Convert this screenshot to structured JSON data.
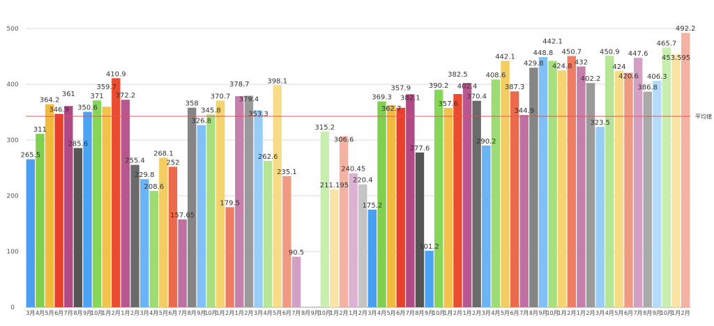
{
  "chart_data": {
    "type": "bar",
    "title": "",
    "xlabel": "",
    "ylabel": "",
    "ylim": [
      0,
      500
    ],
    "yticks": [
      0,
      100,
      200,
      300,
      400,
      500
    ],
    "grid": true,
    "legend": "none",
    "reference_line": {
      "label": "平均値",
      "value": 342.5,
      "color": "#e05555"
    },
    "categories": [
      "3月",
      "4月",
      "5月",
      "6月",
      "7月",
      "8月",
      "9月",
      "10月",
      "1月",
      "2月",
      "1月",
      "2月",
      "3月",
      "4月",
      "5月",
      "6月",
      "7月",
      "8月",
      "9月",
      "10月",
      "1月",
      "2月",
      "1月",
      "2月",
      "3月",
      "4月",
      "5月",
      "6月",
      "7月",
      "8月",
      "9月",
      "10月",
      "1月",
      "2月",
      "1月",
      "2月",
      "3月",
      "4月",
      "5月",
      "6月",
      "7月",
      "8月",
      "9月",
      "10月",
      "1月",
      "2月",
      "1月",
      "2月",
      "3月",
      "4月",
      "5月",
      "6月",
      "7月",
      "8月",
      "9月",
      "10月",
      "1月",
      "2月",
      "1月",
      "2月",
      "3月",
      "4月",
      "5月",
      "6月",
      "7月",
      "8月",
      "9月",
      "10月",
      "1月",
      "2月"
    ],
    "values": [
      265.5,
      311,
      364.2,
      346.9,
      361,
      285.6,
      350.6,
      371,
      359.7,
      410.9,
      372.2,
      255.4,
      229.8,
      208.6,
      268.1,
      252,
      157.65,
      358,
      326.8,
      345.8,
      370.7,
      179.5,
      378.7,
      379.4,
      353.3,
      262.6,
      398.1,
      235.1,
      90.5,
      0,
      0,
      315.2,
      211.195,
      306.6,
      240.45,
      220.4,
      175.2,
      369.3,
      362.7,
      357.9,
      382.1,
      277.6,
      101.2,
      390.2,
      357.6,
      382.5,
      402.4,
      370.4,
      290.2,
      408.6,
      442.1,
      387.3,
      344.9,
      429.8,
      448.8,
      442.1,
      424.8,
      450.7,
      432,
      402.2,
      323.5,
      450.9,
      424,
      420.6,
      447.6,
      386.8,
      406.3,
      465.7,
      453.595,
      492.2
    ],
    "data_labels": [
      "265.5",
      "311",
      "364.2",
      "346.9",
      "361",
      "285.6",
      "350.6",
      "371",
      "359.7",
      "410.9",
      "372.2",
      "255.4",
      "229.8",
      "208.6",
      "268.1",
      "252",
      "157.65",
      "358",
      "326.8",
      "345.8",
      "370.7",
      "179.5",
      "378.7",
      "379.4",
      "353.3",
      "262.6",
      "398.1",
      "235.1",
      "90.5",
      "",
      "",
      "315.2",
      "211.195",
      "306.6",
      "240.45",
      "220.4",
      "175.2",
      "369.3",
      "362.7",
      "357.9",
      "382.1",
      "277.6",
      "101.2",
      "390.2",
      "357.6",
      "382.5",
      "402.4",
      "370.4",
      "290.2",
      "408.6",
      "442.1",
      "387.3",
      "344.9",
      "429.8",
      "448.8",
      "442.1",
      "424.8",
      "450.7",
      "432",
      "402.2",
      "323.5",
      "450.9",
      "424",
      "420.6",
      "447.6",
      "386.8",
      "406.3",
      "465.7",
      "453.595",
      "492.2"
    ],
    "palette": [
      "#4a9ff0",
      "#7ed04e",
      "#f2bb3d",
      "#e8402b",
      "#b04a86",
      "#555555",
      "#4ba3f5",
      "#86d65a",
      "#f3c24a",
      "#ea4c30",
      "#b8578f",
      "#6b6b6b",
      "#6ab4f5",
      "#9ddc75",
      "#f4cd62",
      "#ec6a4c",
      "#c06fa2",
      "#858585",
      "#80bff7",
      "#a8e080",
      "#f5d470",
      "#ee7d64",
      "#c67fab",
      "#9a9a9a",
      "#98cdf8",
      "#b6e596",
      "#f7dc88",
      "#f09a82",
      "#d39fc5",
      "#aaaaaa",
      "#b4dcfa",
      "#c8eeb0",
      "#f9e4a5",
      "#f3b2a2",
      "#dcb2d2",
      "#c4c4c4"
    ]
  }
}
